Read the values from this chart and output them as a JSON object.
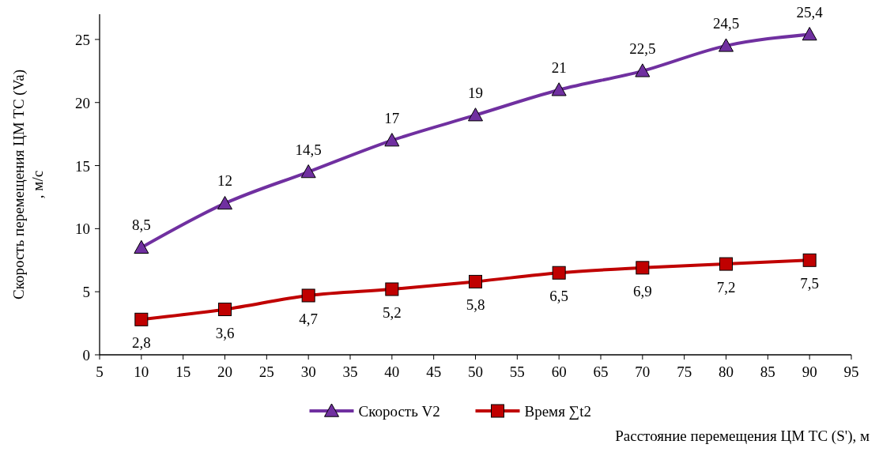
{
  "chart_data": {
    "type": "line",
    "ylabel": "Скорость  перемещения ЦМ ТС (Va)\n, м/с",
    "xlabel": "Расстояние перемещения ЦМ ТС (S'), м",
    "x": [
      10,
      20,
      30,
      40,
      50,
      60,
      70,
      80,
      90
    ],
    "series": [
      {
        "name": "Скорость V2",
        "color": "#7030a0",
        "marker": "triangle",
        "values": [
          8.5,
          12,
          14.5,
          17,
          19,
          21,
          22.5,
          24.5,
          25.4
        ],
        "value_labels": [
          "8,5",
          "12",
          "14,5",
          "17",
          "19",
          "21",
          "22,5",
          "24,5",
          "25,4"
        ]
      },
      {
        "name": "Время ∑t2",
        "color": "#c00000",
        "marker": "square",
        "values": [
          2.8,
          3.6,
          4.7,
          5.2,
          5.8,
          6.5,
          6.9,
          7.2,
          7.5
        ],
        "value_labels": [
          "2,8",
          "3,6",
          "4,7",
          "5,2",
          "5,8",
          "6,5",
          "6,9",
          "7,2",
          "7,5"
        ]
      }
    ],
    "xlim": [
      5,
      95
    ],
    "xticks": [
      5,
      10,
      15,
      20,
      25,
      30,
      35,
      40,
      45,
      50,
      55,
      60,
      65,
      70,
      75,
      80,
      85,
      90,
      95
    ],
    "ylim": [
      0,
      27
    ],
    "yticks": [
      0,
      5,
      10,
      15,
      20,
      25
    ],
    "legend": "bottom",
    "grid": false
  }
}
